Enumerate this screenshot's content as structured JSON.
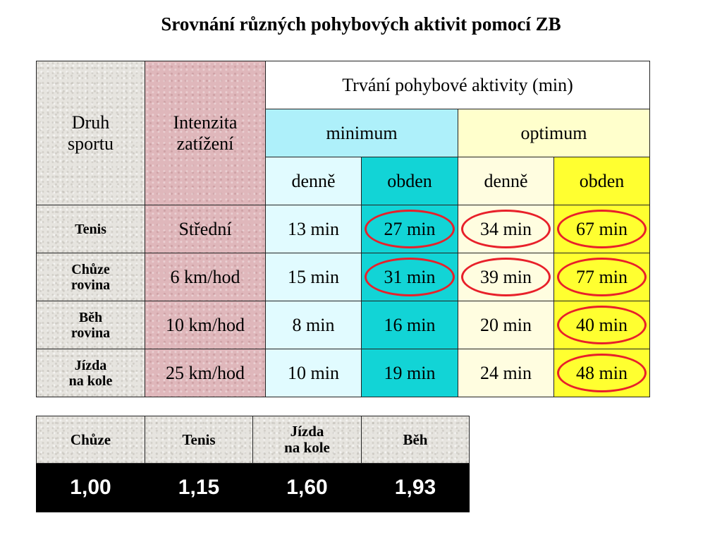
{
  "title": "Srovnání různých pohybových aktivit pomocí ZB",
  "main_table": {
    "col1_header": [
      "Druh",
      "sportu"
    ],
    "col2_header": [
      "Intenzita",
      "zatížení"
    ],
    "duration_header": "Trvání pohybové aktivity (min)",
    "minimum_label": "minimum",
    "optimum_label": "optimum",
    "sub_headers": [
      "denně",
      "obden",
      "denně",
      "obden"
    ],
    "rows": [
      {
        "sport": [
          "Tenis"
        ],
        "intensity": "Střední",
        "values": [
          "13 min",
          "27 min",
          "34 min",
          "67 min"
        ],
        "circled": [
          false,
          true,
          true,
          true
        ]
      },
      {
        "sport": [
          "Chůze",
          "rovina"
        ],
        "intensity": "6 km/hod",
        "values": [
          "15 min",
          "31 min",
          "39 min",
          "77 min"
        ],
        "circled": [
          false,
          true,
          true,
          true
        ]
      },
      {
        "sport": [
          "Běh",
          "rovina"
        ],
        "intensity": "10 km/hod",
        "values": [
          "8 min",
          "16 min",
          "20 min",
          "40 min"
        ],
        "circled": [
          false,
          false,
          false,
          true
        ]
      },
      {
        "sport": [
          "Jízda",
          "na kole"
        ],
        "intensity": "25 km/hod",
        "values": [
          "10 min",
          "19 min",
          "24 min",
          "48 min"
        ],
        "circled": [
          false,
          false,
          false,
          true
        ]
      }
    ]
  },
  "factors_table": {
    "headers": [
      [
        "Chůze"
      ],
      [
        "Tenis"
      ],
      [
        "Jízda",
        "na kole"
      ],
      [
        "Běh"
      ]
    ],
    "values": [
      "1,00",
      "1,15",
      "1,60",
      "1,93"
    ]
  },
  "colors": {
    "granite": "#e6e4df",
    "rose": "#dfb7bb",
    "minimum_header": "#aef0fa",
    "minimum_daily": "#e1fbff",
    "minimum_alternate": "#12d4d6",
    "optimum_daily": "#fffde0",
    "optimum_header": "#ffffcc",
    "optimum_alternate": "#ffff30",
    "circle": "#e8202a",
    "factor_row": "#000000"
  }
}
